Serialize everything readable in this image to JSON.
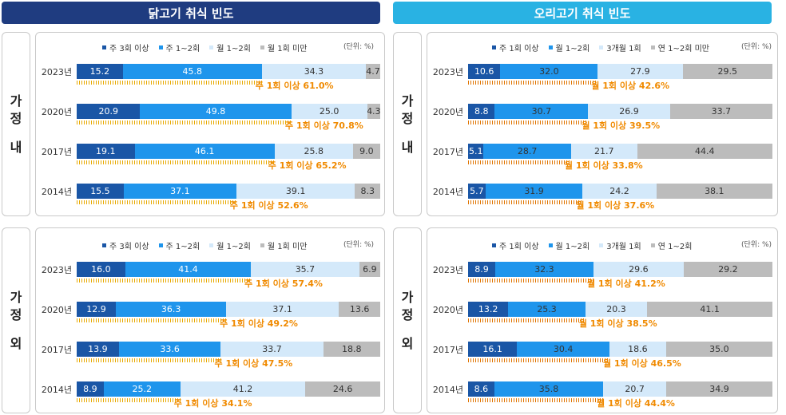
{
  "colors": {
    "navy_header": "#1f3c80",
    "sky_header": "#29b2e3"
  },
  "panels_meta": {
    "chicken_title": "닭고기 취식 빈도",
    "duck_title": "오리고기 취식 빈도",
    "side_home": [
      "가",
      "정",
      "내"
    ],
    "side_out": [
      "가",
      "정",
      "외"
    ]
  },
  "chart_data": [
    {
      "type": "bar",
      "stacked": true,
      "orientation": "horizontal",
      "title": "닭고기 취식 빈도",
      "group": "가정 내",
      "unit": "(단위: %)",
      "categories": [
        "2023년",
        "2020년",
        "2017년",
        "2014년"
      ],
      "series": [
        {
          "name": "주 3회 이상",
          "color": "#1a56a6",
          "text_color": "#ffffff",
          "values": [
            15.2,
            20.9,
            19.1,
            15.5
          ]
        },
        {
          "name": "주 1~2회",
          "color": "#1f95ec",
          "text_color": "#ffffff",
          "values": [
            45.8,
            49.8,
            46.1,
            37.1
          ]
        },
        {
          "name": "월 1~2회",
          "color": "#d4e9fa",
          "text_color": "#333333",
          "values": [
            34.3,
            25.0,
            25.8,
            39.1
          ]
        },
        {
          "name": "월 1회 미만",
          "color": "#bcbcbc",
          "text_color": "#333333",
          "values": [
            4.7,
            4.3,
            9.0,
            8.3
          ]
        }
      ],
      "annotations": [
        "주 1회 이상 61.0%",
        "주 1회 이상 70.8%",
        "주 1회 이상 65.2%",
        "주 1회 이상 52.6%"
      ],
      "annotation_values": [
        61.0,
        70.8,
        65.2,
        52.6
      ],
      "stripe": "yellow"
    },
    {
      "type": "bar",
      "stacked": true,
      "orientation": "horizontal",
      "title": "닭고기 취식 빈도",
      "group": "가정 외",
      "unit": "(단위: %)",
      "categories": [
        "2023년",
        "2020년",
        "2017년",
        "2014년"
      ],
      "series": [
        {
          "name": "주 3회 이상",
          "color": "#1a56a6",
          "text_color": "#ffffff",
          "values": [
            16.0,
            12.9,
            13.9,
            8.9
          ]
        },
        {
          "name": "주 1~2회",
          "color": "#1f95ec",
          "text_color": "#ffffff",
          "values": [
            41.4,
            36.3,
            33.6,
            25.2
          ]
        },
        {
          "name": "월 1~2회",
          "color": "#d4e9fa",
          "text_color": "#333333",
          "values": [
            35.7,
            37.1,
            33.7,
            41.2
          ]
        },
        {
          "name": "월 1회 미만",
          "color": "#bcbcbc",
          "text_color": "#333333",
          "values": [
            6.9,
            13.6,
            18.8,
            24.6
          ]
        }
      ],
      "annotations": [
        "주 1회 이상 57.4%",
        "주 1회 이상 49.2%",
        "주 1회 이상 47.5%",
        "주 1회 이상 34.1%"
      ],
      "annotation_values": [
        57.4,
        49.2,
        47.5,
        34.1
      ],
      "stripe": "yellow"
    },
    {
      "type": "bar",
      "stacked": true,
      "orientation": "horizontal",
      "title": "오리고기 취식 빈도",
      "group": "가정 내",
      "unit": "(단위: %)",
      "categories": [
        "2023년",
        "2020년",
        "2017년",
        "2014년"
      ],
      "series": [
        {
          "name": "주 1회 이상",
          "color": "#1a56a6",
          "text_color": "#ffffff",
          "values": [
            10.6,
            8.8,
            5.1,
            5.7
          ]
        },
        {
          "name": "월 1~2회",
          "color": "#1f95ec",
          "text_color": "#333333",
          "values": [
            32.0,
            30.7,
            28.7,
            31.9
          ]
        },
        {
          "name": "3개월 1회",
          "color": "#d4e9fa",
          "text_color": "#333333",
          "values": [
            27.9,
            26.9,
            21.7,
            24.2
          ]
        },
        {
          "name": "연 1~2회 미만",
          "color": "#bcbcbc",
          "text_color": "#333333",
          "values": [
            29.5,
            33.7,
            44.4,
            38.1
          ]
        }
      ],
      "annotations": [
        "월 1회 이상 42.6%",
        "월 1회 이상 39.5%",
        "월 1회 이상 33.8%",
        "월 1회 이상 37.6%"
      ],
      "annotation_values": [
        42.6,
        39.5,
        33.8,
        37.6
      ],
      "stripe": "orange"
    },
    {
      "type": "bar",
      "stacked": true,
      "orientation": "horizontal",
      "title": "오리고기 취식 빈도",
      "group": "가정 외",
      "unit": "(단위: %)",
      "categories": [
        "2023년",
        "2020년",
        "2017년",
        "2014년"
      ],
      "series": [
        {
          "name": "주 1회 이상",
          "color": "#1a56a6",
          "text_color": "#ffffff",
          "values": [
            8.9,
            13.2,
            16.1,
            8.6
          ]
        },
        {
          "name": "월 1~2회",
          "color": "#1f95ec",
          "text_color": "#333333",
          "values": [
            32.3,
            25.3,
            30.4,
            35.8
          ]
        },
        {
          "name": "3개월 1회",
          "color": "#d4e9fa",
          "text_color": "#333333",
          "values": [
            29.6,
            20.3,
            18.6,
            20.7
          ]
        },
        {
          "name": "연 1~2회",
          "color": "#bcbcbc",
          "text_color": "#333333",
          "values": [
            29.2,
            41.1,
            35.0,
            34.9
          ]
        }
      ],
      "annotations": [
        "월 1회 이상 41.2%",
        "월 1회 이상 38.5%",
        "월 1회 이상 46.5%",
        "월 1회 이상 44.4%"
      ],
      "annotation_values": [
        41.2,
        38.5,
        46.5,
        44.4
      ],
      "stripe": "orange"
    }
  ]
}
